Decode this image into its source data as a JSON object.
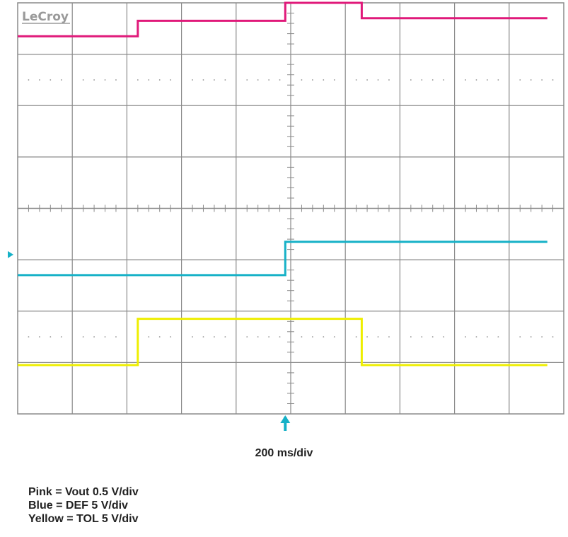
{
  "brand": "LeCroy",
  "timebase_label": "200 ms/div",
  "legend": [
    "Pink = Vout 0.5 V/div",
    "Blue = DEF 5 V/div",
    "Yellow = TOL 5 V/div"
  ],
  "chart_data": {
    "type": "line",
    "grid": true,
    "x_divisions": 10,
    "y_divisions": 8,
    "xlim": [
      0,
      10
    ],
    "ylim": [
      0,
      8
    ],
    "x_unit": "div",
    "y_unit": "div",
    "series": [
      {
        "name": "Vout",
        "color": "#e0197a",
        "x": [
          0,
          2.2,
          2.2,
          4.9,
          4.9,
          6.3,
          6.3,
          9.7
        ],
        "y": [
          7.35,
          7.35,
          7.65,
          7.65,
          8.0,
          8.0,
          7.7,
          7.7
        ]
      },
      {
        "name": "DEF",
        "color": "#16b1c7",
        "x": [
          0,
          4.9,
          4.9,
          9.7
        ],
        "y": [
          2.7,
          2.7,
          3.35,
          3.35
        ]
      },
      {
        "name": "TOL",
        "color": "#eeee00",
        "x": [
          0,
          2.2,
          2.2,
          6.3,
          6.3,
          9.7
        ],
        "y": [
          0.95,
          0.95,
          1.85,
          1.85,
          0.95,
          0.95
        ]
      }
    ],
    "trigger_marker_x": 4.9,
    "ground_marker_y": 3.1,
    "marker_color": "#16b1c7"
  }
}
